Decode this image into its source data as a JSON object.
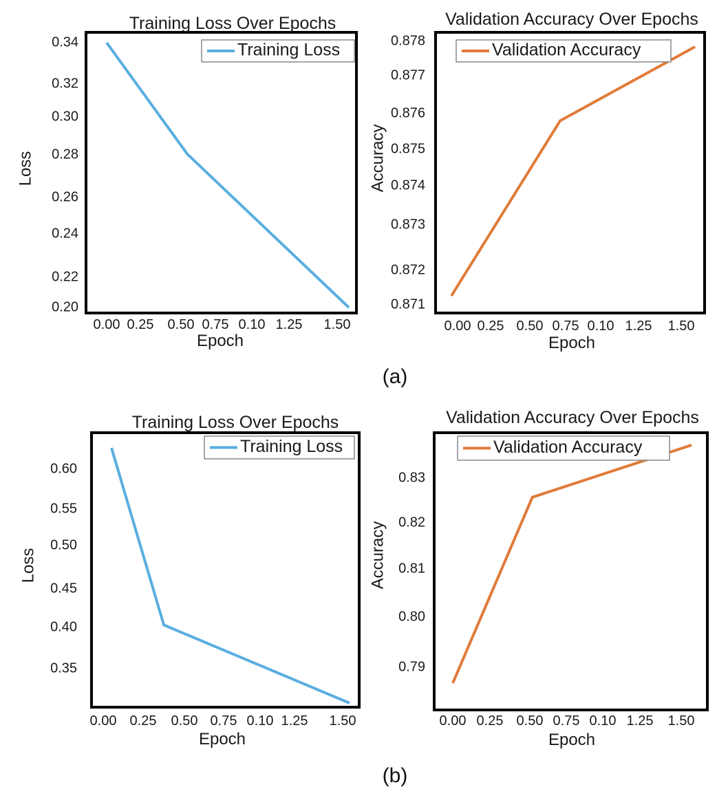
{
  "colors": {
    "loss": "#5aaee0",
    "accuracy": "#e07b39",
    "frame": "#000000"
  },
  "captions": [
    "(a)",
    "(b)"
  ],
  "chart_data": [
    {
      "type": "line",
      "title": "Training Loss Over Epochs",
      "xlabel": "Epoch",
      "ylabel": "Loss",
      "xticks": [
        "0.00",
        "0.25",
        "0.50",
        "0.75",
        "0.10",
        "1.25",
        "1.50"
      ],
      "yticks": [
        "0.34",
        "0.32",
        "0.30",
        "0.28",
        "0.26",
        "0.24",
        "0.22",
        "0.20"
      ],
      "legend": "top-right",
      "series": [
        {
          "name": "Training Loss",
          "color": "#5aaee0",
          "x": [
            0.0,
            0.5,
            1.5
          ],
          "y": [
            0.3425,
            0.2825,
            0.2
          ]
        }
      ]
    },
    {
      "type": "line",
      "title": "Validation Accuracy Over Epochs",
      "xlabel": "Epoch",
      "ylabel": "Accuracy",
      "xticks": [
        "0.00",
        "0.25",
        "0.50",
        "0.75",
        "0.10",
        "1.25",
        "1.50"
      ],
      "yticks": [
        "0.878",
        "0.877",
        "0.876",
        "0.875",
        "0.874",
        "0.873",
        "0.872",
        "0.871"
      ],
      "legend": "top-right",
      "series": [
        {
          "name": "Validation Accuracy",
          "color": "#e07b39",
          "x": [
            0.0,
            0.67,
            1.5
          ],
          "y": [
            0.8714,
            0.8759,
            0.8778
          ]
        }
      ]
    },
    {
      "type": "line",
      "title": "Training Loss Over Epochs",
      "xlabel": "Epoch",
      "ylabel": "Loss",
      "xticks": [
        "0.00",
        "0.25",
        "0.50",
        "0.75",
        "0.10",
        "1.25",
        "1.50"
      ],
      "yticks": [
        "0.60",
        "0.55",
        "0.50",
        "0.45",
        "0.40",
        "0.35"
      ],
      "legend": "top-right",
      "series": [
        {
          "name": "Training Loss",
          "color": "#5aaee0",
          "x": [
            0.0,
            0.33,
            1.5
          ],
          "y": [
            0.627,
            0.407,
            0.31
          ]
        }
      ]
    },
    {
      "type": "line",
      "title": "Validation Accuracy Over Epochs",
      "xlabel": "Epoch",
      "ylabel": "Accuracy",
      "xticks": [
        "0.00",
        "0.25",
        "0.50",
        "0.75",
        "0.10",
        "1.25",
        "1.50"
      ],
      "yticks": [
        "0.83",
        "0.82",
        "0.81",
        "0.80",
        "0.79"
      ],
      "legend": "top-right",
      "series": [
        {
          "name": "Validation Accuracy",
          "color": "#e07b39",
          "x": [
            0.0,
            0.5,
            1.5
          ],
          "y": [
            0.7873,
            0.8265,
            0.8375
          ]
        }
      ]
    }
  ]
}
